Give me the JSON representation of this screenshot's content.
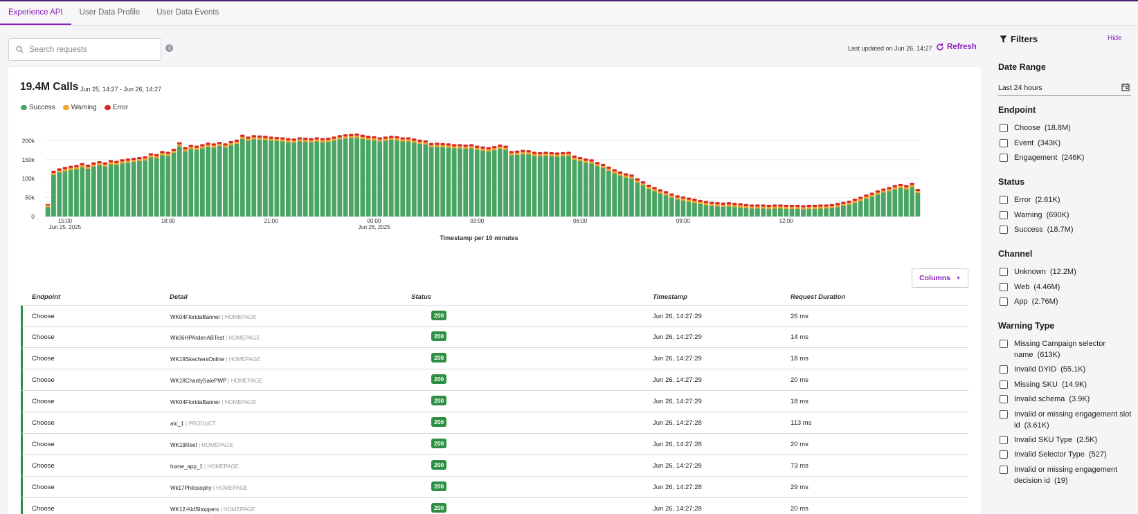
{
  "tabs": [
    "Experience API",
    "User Data Profile",
    "User Data Events"
  ],
  "search": {
    "placeholder": "Search requests"
  },
  "last_updated": "Last updated on Jun 26, 14:27",
  "refresh_label": "Refresh",
  "summary": {
    "calls": "19.4M Calls",
    "range": "Jun 25, 14:27 - Jun 26, 14:27"
  },
  "legend": [
    "Success",
    "Warning",
    "Error"
  ],
  "colors": {
    "success": "#4aa564",
    "warning": "#f0a428",
    "error": "#d62a22",
    "accent": "#8a1fb8"
  },
  "chart_data": {
    "type": "bar",
    "stacked": true,
    "title": "19.4M Calls",
    "xlabel": "Timestamp per 10 minutes",
    "ylabel": "",
    "ylim": [
      0,
      230000
    ],
    "y_ticks": [
      "0",
      "50k",
      "100k",
      "150k",
      "200k"
    ],
    "y_tick_values": [
      0,
      50000,
      100000,
      150000,
      200000
    ],
    "x_ticks": [
      {
        "label": "15:00",
        "sub": "Jun 25, 2025",
        "index": 3
      },
      {
        "label": "18:00",
        "sub": "",
        "index": 21
      },
      {
        "label": "21:00",
        "sub": "",
        "index": 39
      },
      {
        "label": "00:00",
        "sub": "Jun 26, 2025",
        "index": 57
      },
      {
        "label": "03:00",
        "sub": "",
        "index": 75
      },
      {
        "label": "06:00",
        "sub": "",
        "index": 93
      },
      {
        "label": "09:00",
        "sub": "",
        "index": 111
      },
      {
        "label": "12:00",
        "sub": "",
        "index": 129
      }
    ],
    "series": [
      {
        "name": "Success",
        "values": [
          25000,
          110000,
          116000,
          120000,
          123000,
          125000,
          130000,
          126000,
          132000,
          135000,
          132000,
          138000,
          136000,
          140000,
          142000,
          144000,
          146000,
          148000,
          156000,
          154000,
          162000,
          160000,
          168000,
          185000,
          172000,
          178000,
          176000,
          180000,
          184000,
          182000,
          186000,
          182000,
          188000,
          192000,
          205000,
          200000,
          204000,
          203000,
          202000,
          200000,
          199000,
          198000,
          196000,
          195000,
          198000,
          197000,
          196000,
          198000,
          196000,
          197000,
          200000,
          204000,
          206000,
          207000,
          208000,
          205000,
          202000,
          201000,
          198000,
          200000,
          202000,
          201000,
          198000,
          198000,
          195000,
          192000,
          190000,
          183000,
          184000,
          183000,
          182000,
          180000,
          180000,
          179000,
          180000,
          176000,
          174000,
          172000,
          175000,
          179000,
          176000,
          162000,
          163000,
          165000,
          164000,
          160000,
          159000,
          160000,
          159000,
          158000,
          159000,
          160000,
          150000,
          146000,
          142000,
          140000,
          133000,
          128000,
          121000,
          114000,
          108000,
          103000,
          100000,
          90000,
          82000,
          73000,
          67000,
          61000,
          56000,
          50000,
          45000,
          42000,
          39000,
          36000,
          33000,
          30000,
          28000,
          27000,
          26000,
          27000,
          25000,
          24000,
          22000,
          21000,
          21000,
          21000,
          20000,
          21000,
          21000,
          20000,
          20000,
          20000,
          19000,
          20000,
          20000,
          21000,
          21000,
          22000,
          25000,
          28000,
          31000,
          36000,
          41000,
          47000,
          52000,
          58000,
          63000,
          67000,
          72000,
          75000,
          72000,
          78000,
          62000
        ]
      },
      {
        "name": "Warning",
        "values": [
          5000,
          5000,
          5000,
          5000,
          5000,
          5000,
          5000,
          5000,
          5000,
          5000,
          5000,
          5000,
          5000,
          5000,
          5000,
          5000,
          5000,
          5000,
          5000,
          5000,
          5000,
          5000,
          5000,
          5000,
          5000,
          5000,
          5000,
          5000,
          5000,
          5000,
          5000,
          5000,
          5000,
          5000,
          5000,
          5000,
          5000,
          5000,
          5000,
          5000,
          5000,
          5000,
          5000,
          5000,
          5000,
          5000,
          5000,
          5000,
          5000,
          5000,
          5000,
          5000,
          5000,
          5000,
          5000,
          5000,
          5000,
          5000,
          5000,
          5000,
          5000,
          5000,
          5000,
          5000,
          5000,
          5000,
          5000,
          5000,
          5000,
          5000,
          5000,
          5000,
          5000,
          5000,
          5000,
          5000,
          5000,
          5000,
          5000,
          5000,
          5000,
          5000,
          5000,
          5000,
          5000,
          5000,
          5000,
          5000,
          5000,
          5000,
          5000,
          5000,
          5000,
          5000,
          5000,
          5000,
          5000,
          5000,
          5000,
          5000,
          5000,
          5000,
          5000,
          5000,
          5000,
          5000,
          5000,
          5000,
          5000,
          5000,
          5000,
          5000,
          5000,
          5000,
          5000,
          5000,
          5000,
          5000,
          5000,
          5000,
          5000,
          5000,
          5000,
          5000,
          5000,
          5000,
          5000,
          5000,
          5000,
          5000,
          5000,
          5000,
          5000,
          5000,
          5000,
          5000,
          5000,
          5000,
          5000,
          5000,
          5000,
          5000,
          5000,
          5000,
          5000,
          5000,
          5000,
          5000,
          5000,
          5000,
          5000,
          5000,
          5000
        ]
      },
      {
        "name": "Error",
        "values": [
          3000,
          6000,
          6000,
          6000,
          6000,
          6000,
          6000,
          6000,
          6000,
          6000,
          6000,
          6000,
          6000,
          6000,
          6000,
          6000,
          6000,
          6000,
          6000,
          6000,
          6000,
          6000,
          6000,
          6000,
          6000,
          6000,
          6000,
          6000,
          6000,
          6000,
          6000,
          6000,
          6000,
          6000,
          6000,
          6000,
          6000,
          6000,
          6000,
          6000,
          6000,
          6000,
          6000,
          6000,
          6000,
          6000,
          6000,
          6000,
          6000,
          6000,
          6000,
          6000,
          6000,
          6000,
          6000,
          6000,
          6000,
          6000,
          6000,
          6000,
          6000,
          6000,
          6000,
          6000,
          6000,
          6000,
          6000,
          6000,
          6000,
          6000,
          6000,
          6000,
          6000,
          6000,
          6000,
          6000,
          6000,
          6000,
          6000,
          6000,
          6000,
          6000,
          6000,
          6000,
          6000,
          6000,
          6000,
          6000,
          6000,
          6000,
          6000,
          6000,
          6000,
          6000,
          6000,
          6000,
          6000,
          6000,
          6000,
          6000,
          6000,
          6000,
          6000,
          6000,
          6000,
          6000,
          6000,
          6000,
          6000,
          6000,
          6000,
          6000,
          6000,
          6000,
          6000,
          6000,
          6000,
          6000,
          6000,
          6000,
          6000,
          6000,
          6000,
          6000,
          6000,
          6000,
          6000,
          6000,
          6000,
          6000,
          6000,
          6000,
          6000,
          6000,
          6000,
          6000,
          6000,
          6000,
          6000,
          6000,
          6000,
          6000,
          6000,
          6000,
          6000,
          6000,
          6000,
          6000,
          6000,
          6000,
          6000,
          6000,
          6000
        ]
      }
    ]
  },
  "columns_label": "Columns",
  "table": {
    "headers": [
      "Endpoint",
      "Detail",
      "Status",
      "Timestamp",
      "Request Duration"
    ],
    "rows": [
      {
        "endpoint": "Choose",
        "detail": "WK04FloridaBanner",
        "page": "HOMEPAGE",
        "status": "200",
        "timestamp": "Jun 26, 14:27:29",
        "duration": "26 ms"
      },
      {
        "endpoint": "Choose",
        "detail": "Wk06HPArdenABTest",
        "page": "HOMEPAGE",
        "status": "200",
        "timestamp": "Jun 26, 14:27:29",
        "duration": "14 ms"
      },
      {
        "endpoint": "Choose",
        "detail": "WK19SkechersOnline",
        "page": "HOMEPAGE",
        "status": "200",
        "timestamp": "Jun 26, 14:27:29",
        "duration": "18 ms"
      },
      {
        "endpoint": "Choose",
        "detail": "WK18CharitySalePWP",
        "page": "HOMEPAGE",
        "status": "200",
        "timestamp": "Jun 26, 14:27:29",
        "duration": "20 ms"
      },
      {
        "endpoint": "Choose",
        "detail": "WK04FloridaBanner",
        "page": "HOMEPAGE",
        "status": "200",
        "timestamp": "Jun 26, 14:27:29",
        "duration": "18 ms"
      },
      {
        "endpoint": "Choose",
        "detail": "atc_1",
        "page": "PRODUCT",
        "status": "200",
        "timestamp": "Jun 26, 14:27:28",
        "duration": "113 ms"
      },
      {
        "endpoint": "Choose",
        "detail": "WK19Reef",
        "page": "HOMEPAGE",
        "status": "200",
        "timestamp": "Jun 26, 14:27:28",
        "duration": "20 ms"
      },
      {
        "endpoint": "Choose",
        "detail": "home_app_1",
        "page": "HOMEPAGE",
        "status": "200",
        "timestamp": "Jun 26, 14:27:28",
        "duration": "73 ms"
      },
      {
        "endpoint": "Choose",
        "detail": "Wk17Philosophy",
        "page": "HOMEPAGE",
        "status": "200",
        "timestamp": "Jun 26, 14:27:28",
        "duration": "29 ms"
      },
      {
        "endpoint": "Choose",
        "detail": "WK12-KidShoppers",
        "page": "HOMEPAGE",
        "status": "200",
        "timestamp": "Jun 26, 14:27:28",
        "duration": "20 ms"
      }
    ]
  },
  "filters": {
    "title": "Filters",
    "hide_label": "Hide",
    "date_range": {
      "heading": "Date Range",
      "value": "Last 24 hours"
    },
    "endpoint": {
      "heading": "Endpoint",
      "options": [
        {
          "label": "Choose",
          "count": "(18.8M)"
        },
        {
          "label": "Event",
          "count": "(343K)"
        },
        {
          "label": "Engagement",
          "count": "(246K)"
        }
      ]
    },
    "status": {
      "heading": "Status",
      "options": [
        {
          "label": "Error",
          "count": "(2.61K)"
        },
        {
          "label": "Warning",
          "count": "(690K)"
        },
        {
          "label": "Success",
          "count": "(18.7M)"
        }
      ]
    },
    "channel": {
      "heading": "Channel",
      "options": [
        {
          "label": "Unknown",
          "count": "(12.2M)"
        },
        {
          "label": "Web",
          "count": "(4.46M)"
        },
        {
          "label": "App",
          "count": "(2.76M)"
        }
      ]
    },
    "warning_type": {
      "heading": "Warning Type",
      "options": [
        {
          "label": "Missing Campaign selector name",
          "count": "(613K)"
        },
        {
          "label": "Invalid DYID",
          "count": "(55.1K)"
        },
        {
          "label": "Missing SKU",
          "count": "(14.9K)"
        },
        {
          "label": "Invalid schema",
          "count": "(3.9K)"
        },
        {
          "label": "Invalid or missing engagement slot id",
          "count": "(3.61K)"
        },
        {
          "label": "Invalid SKU Type",
          "count": "(2.5K)"
        },
        {
          "label": "Invalid Selector Type",
          "count": "(527)"
        },
        {
          "label": "Invalid or missing engagement decision id",
          "count": "(19)"
        }
      ]
    }
  }
}
